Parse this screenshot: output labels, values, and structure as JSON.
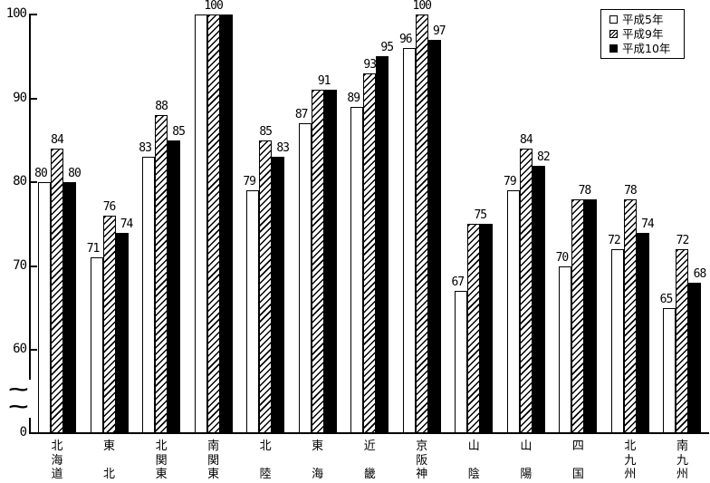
{
  "chart_data": {
    "type": "bar",
    "title": "",
    "xlabel": "",
    "ylabel": "",
    "categories": [
      "北海道",
      "東北",
      "北関東",
      "南関東",
      "北陸",
      "東海",
      "近畿",
      "京阪神",
      "山陰",
      "山陽",
      "四国",
      "北九州",
      "南九州"
    ],
    "series": [
      {
        "name": "平成5年",
        "pattern": "white",
        "values": [
          80,
          71,
          83,
          100,
          79,
          87,
          89,
          96,
          67,
          79,
          70,
          72,
          65
        ]
      },
      {
        "name": "平成9年",
        "pattern": "hatched",
        "values": [
          84,
          76,
          88,
          100,
          85,
          91,
          93,
          100,
          75,
          84,
          78,
          78,
          72
        ]
      },
      {
        "name": "平成10年",
        "pattern": "black",
        "values": [
          80,
          74,
          85,
          100,
          83,
          91,
          95,
          97,
          75,
          82,
          78,
          74,
          68
        ]
      }
    ],
    "yticks": [
      100,
      90,
      80,
      70,
      60
    ],
    "ymax": 100,
    "ylim_displayed": [
      60,
      100
    ],
    "origin_label": "0",
    "axis_break": {
      "present": true,
      "symbol": "~"
    },
    "bar_value_labels": true,
    "grid": false,
    "legend": {
      "position": "top-right",
      "entries": [
        "平成5年",
        "平成9年",
        "平成10年"
      ]
    },
    "colors": {
      "foreground": "#000000",
      "background": "#ffffff",
      "bar_white": "#ffffff",
      "bar_black": "#000000"
    }
  }
}
